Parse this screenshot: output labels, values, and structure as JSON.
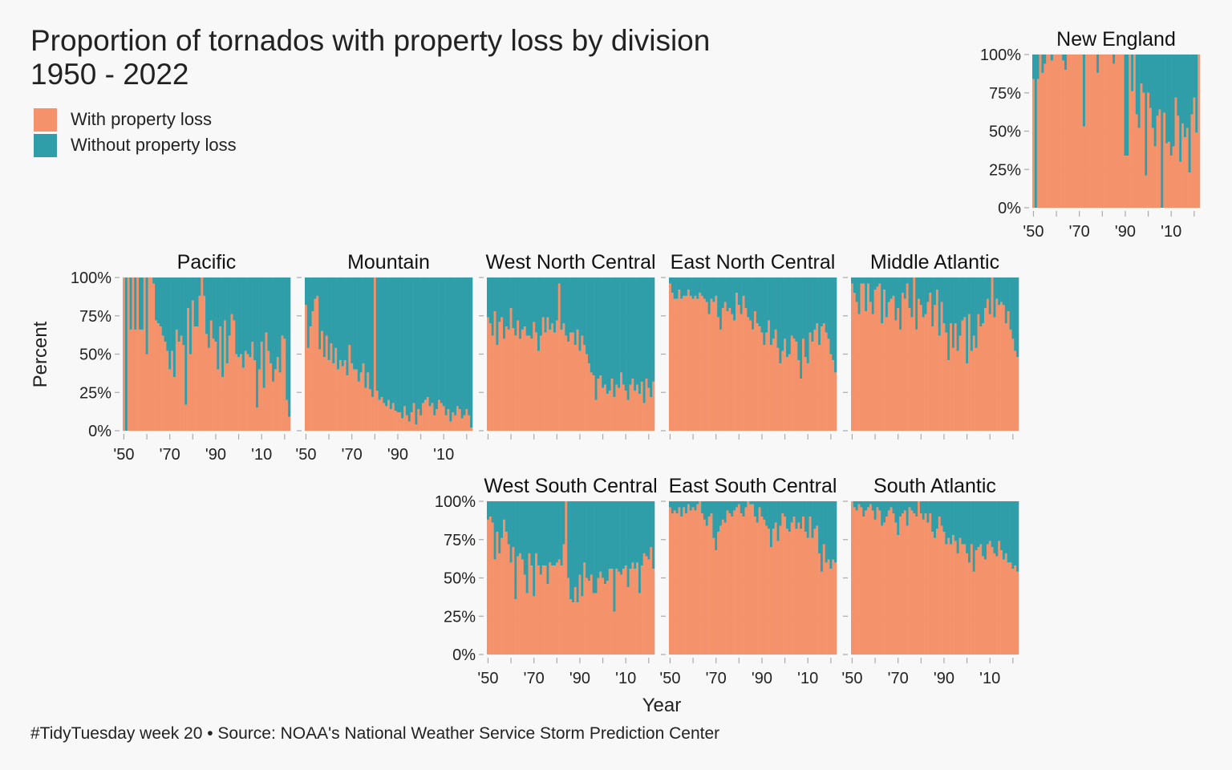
{
  "title": {
    "line1": "Proportion of tornados with property loss by division",
    "line2": "1950 - 2022"
  },
  "legend": {
    "items": [
      {
        "label": "With property loss",
        "color": "#f4936b"
      },
      {
        "label": "Without property loss",
        "color": "#2f9ea8"
      }
    ]
  },
  "caption": "#TidyTuesday week 20 • Source: NOAA's National Weather Service Storm Prediction Center",
  "chart_data": {
    "type": "bar",
    "subtype": "stacked-100-percent-facets",
    "xlabel": "Year",
    "ylabel": "Percent",
    "x_range": [
      1950,
      2022
    ],
    "x_ticks": [
      1950,
      1970,
      1990,
      2010
    ],
    "x_tick_labels": [
      "'50",
      "'70",
      "'90",
      "'10"
    ],
    "y_range": [
      0,
      100
    ],
    "y_ticks": [
      0,
      25,
      50,
      75,
      100
    ],
    "y_tick_labels": [
      "0%",
      "25%",
      "50%",
      "75%",
      "100%"
    ],
    "series": [
      {
        "name": "With property loss",
        "color": "#f4936b"
      },
      {
        "name": "Without property loss",
        "color": "#2f9ea8"
      }
    ],
    "grid": true,
    "panels": [
      {
        "name": "New England",
        "with_property_loss_pct": [
          84,
          0,
          84,
          100,
          88,
          94,
          100,
          100,
          96,
          100,
          100,
          100,
          100,
          96,
          90,
          100,
          100,
          100,
          100,
          100,
          100,
          100,
          53,
          100,
          100,
          100,
          100,
          100,
          88,
          100,
          100,
          100,
          100,
          100,
          100,
          94,
          100,
          100,
          100,
          100,
          34,
          34,
          100,
          76,
          100,
          61,
          52,
          81,
          75,
          21,
          75,
          65,
          52,
          40,
          60,
          64,
          0,
          62,
          42,
          43,
          34,
          40,
          72,
          60,
          30,
          55,
          46,
          52,
          23,
          61,
          72,
          49,
          100
        ]
      },
      {
        "name": "Pacific",
        "with_property_loss_pct": [
          100,
          0,
          100,
          66,
          100,
          66,
          100,
          66,
          66,
          100,
          50,
          100,
          100,
          96,
          72,
          70,
          68,
          62,
          58,
          52,
          40,
          52,
          35,
          66,
          58,
          62,
          56,
          17,
          80,
          50,
          85,
          68,
          68,
          88,
          100,
          88,
          63,
          54,
          72,
          60,
          58,
          40,
          68,
          35,
          72,
          44,
          62,
          76,
          72,
          50,
          48,
          50,
          41,
          52,
          50,
          48,
          58,
          46,
          15,
          40,
          58,
          28,
          64,
          52,
          44,
          32,
          40,
          48,
          38,
          62,
          60,
          20,
          9
        ]
      },
      {
        "name": "Mountain",
        "with_property_loss_pct": [
          82,
          54,
          68,
          78,
          86,
          88,
          53,
          65,
          48,
          62,
          46,
          57,
          44,
          54,
          40,
          46,
          42,
          46,
          36,
          56,
          44,
          40,
          40,
          32,
          38,
          44,
          28,
          38,
          27,
          22,
          100,
          26,
          20,
          22,
          18,
          16,
          20,
          14,
          18,
          13,
          12,
          12,
          8,
          16,
          10,
          6,
          12,
          18,
          4,
          14,
          10,
          18,
          20,
          22,
          16,
          18,
          10,
          14,
          20,
          18,
          16,
          10,
          14,
          6,
          12,
          10,
          16,
          14,
          8,
          10,
          14,
          10,
          2
        ]
      },
      {
        "name": "West North Central",
        "with_property_loss_pct": [
          74,
          70,
          62,
          78,
          56,
          71,
          74,
          60,
          68,
          66,
          80,
          67,
          62,
          72,
          60,
          66,
          68,
          62,
          62,
          60,
          71,
          64,
          52,
          62,
          74,
          64,
          74,
          66,
          70,
          64,
          72,
          96,
          66,
          70,
          62,
          58,
          64,
          64,
          56,
          66,
          52,
          62,
          56,
          50,
          44,
          38,
          36,
          20,
          34,
          36,
          28,
          30,
          24,
          26,
          34,
          22,
          30,
          28,
          38,
          30,
          26,
          20,
          30,
          34,
          26,
          30,
          24,
          32,
          18,
          34,
          28,
          22,
          32
        ]
      },
      {
        "name": "East North Central",
        "with_property_loss_pct": [
          96,
          90,
          86,
          86,
          92,
          86,
          88,
          88,
          92,
          88,
          86,
          88,
          86,
          90,
          88,
          86,
          84,
          76,
          86,
          84,
          88,
          74,
          66,
          80,
          84,
          78,
          80,
          76,
          72,
          90,
          82,
          76,
          88,
          80,
          74,
          72,
          66,
          78,
          70,
          68,
          64,
          56,
          64,
          72,
          56,
          60,
          66,
          54,
          44,
          52,
          60,
          48,
          50,
          62,
          60,
          58,
          46,
          34,
          60,
          48,
          44,
          64,
          58,
          66,
          70,
          56,
          68,
          70,
          64,
          60,
          50,
          46,
          38
        ]
      },
      {
        "name": "Middle Atlantic",
        "with_property_loss_pct": [
          96,
          90,
          84,
          76,
          96,
          96,
          78,
          96,
          84,
          76,
          92,
          94,
          96,
          70,
          92,
          74,
          84,
          86,
          88,
          72,
          80,
          66,
          90,
          86,
          96,
          80,
          74,
          100,
          66,
          86,
          82,
          74,
          76,
          84,
          90,
          68,
          82,
          92,
          62,
          84,
          70,
          64,
          46,
          70,
          54,
          70,
          52,
          62,
          72,
          74,
          44,
          76,
          52,
          62,
          54,
          76,
          68,
          70,
          80,
          86,
          76,
          100,
          74,
          86,
          82,
          84,
          82,
          70,
          78,
          66,
          60,
          52,
          48
        ]
      },
      {
        "name": "West South Central",
        "with_property_loss_pct": [
          88,
          90,
          86,
          62,
          80,
          66,
          76,
          88,
          80,
          72,
          60,
          70,
          36,
          64,
          66,
          62,
          52,
          40,
          66,
          58,
          38,
          66,
          58,
          52,
          58,
          58,
          46,
          60,
          58,
          58,
          60,
          62,
          58,
          72,
          100,
          50,
          36,
          34,
          44,
          34,
          52,
          38,
          60,
          50,
          48,
          52,
          40,
          40,
          50,
          54,
          50,
          46,
          48,
          56,
          56,
          28,
          56,
          54,
          52,
          56,
          58,
          44,
          56,
          60,
          56,
          60,
          40,
          58,
          66,
          64,
          62,
          70,
          56
        ]
      },
      {
        "name": "East South Central",
        "with_property_loss_pct": [
          96,
          92,
          94,
          92,
          96,
          90,
          96,
          92,
          98,
          94,
          96,
          94,
          98,
          100,
          92,
          88,
          84,
          90,
          92,
          76,
          68,
          80,
          84,
          88,
          86,
          94,
          92,
          90,
          94,
          96,
          98,
          92,
          90,
          96,
          100,
          98,
          98,
          90,
          86,
          96,
          90,
          88,
          84,
          82,
          70,
          82,
          86,
          74,
          84,
          92,
          90,
          82,
          80,
          86,
          90,
          82,
          86,
          82,
          90,
          80,
          76,
          90,
          76,
          82,
          84,
          66,
          54,
          72,
          60,
          62,
          56,
          62,
          60
        ]
      },
      {
        "name": "South Atlantic",
        "with_property_loss_pct": [
          100,
          96,
          94,
          98,
          96,
          90,
          94,
          96,
          98,
          94,
          88,
          96,
          94,
          84,
          86,
          90,
          94,
          96,
          92,
          86,
          78,
          90,
          92,
          94,
          84,
          96,
          94,
          92,
          90,
          100,
          92,
          88,
          92,
          86,
          92,
          80,
          76,
          82,
          90,
          84,
          80,
          72,
          76,
          72,
          78,
          74,
          66,
          76,
          72,
          72,
          66,
          60,
          72,
          54,
          68,
          70,
          72,
          64,
          62,
          72,
          74,
          70,
          66,
          64,
          74,
          68,
          62,
          66,
          60,
          60,
          56,
          58,
          54
        ]
      }
    ]
  }
}
